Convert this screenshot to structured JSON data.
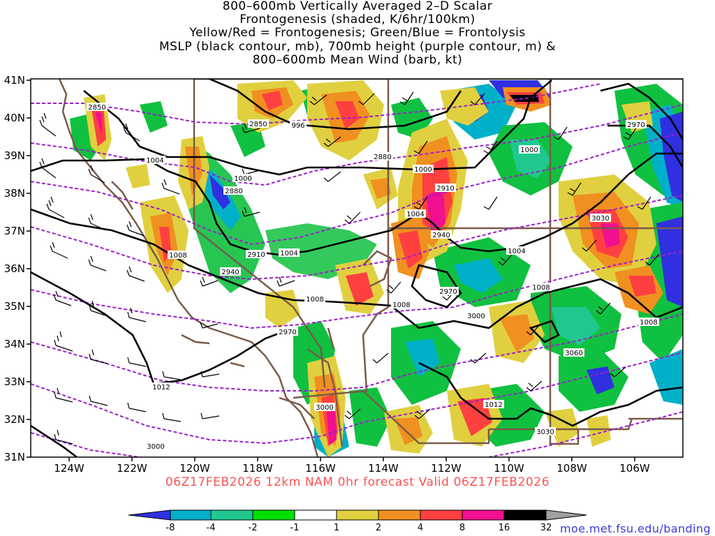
{
  "title": {
    "lines": [
      "800–600mb Vertically Averaged 2–D Scalar",
      "Frontogenesis (shaded, K/6hr/100km)",
      "Yellow/Red = Frontogenesis;  Green/Blue = Frontolysis",
      "MSLP (black contour, mb), 700mb height (purple contour, m) &",
      "800–600mb Mean Wind (barb, kt)"
    ]
  },
  "axes": {
    "lat_labels": [
      "41N",
      "40N",
      "39N",
      "38N",
      "37N",
      "36N",
      "35N",
      "34N",
      "33N",
      "32N",
      "31N"
    ],
    "lon_labels": [
      "124W",
      "122W",
      "120W",
      "118W",
      "116W",
      "114W",
      "112W",
      "110W",
      "108W",
      "106W"
    ]
  },
  "forecast_label": "06Z17FEB2026 12km NAM 0hr forecast Valid 06Z17FEB2026",
  "credit": "moe.met.fsu.edu/banding",
  "colorbar": {
    "labels": [
      "-8",
      "-4",
      "-2",
      "-1",
      "1",
      "2",
      "4",
      "8",
      "16",
      "32"
    ],
    "colors": [
      "#3030e0",
      "#00b0c8",
      "#20c890",
      "#10c040",
      "#00e000",
      "#ffffff",
      "#e0d040",
      "#f09020",
      "#ff4040",
      "#f01090",
      "#000000",
      "#a0a0a0"
    ]
  },
  "contours": {
    "mslp_labels": [
      "996",
      "1000",
      "1000",
      "1000",
      "1004",
      "1004",
      "1004",
      "1004",
      "1008",
      "1008",
      "1008",
      "1008",
      "1008",
      "1012",
      "1012"
    ],
    "height_labels": [
      "2850",
      "2850",
      "2880",
      "2880",
      "2910",
      "2910",
      "2940",
      "2940",
      "2970",
      "2970",
      "2970",
      "3000",
      "3000",
      "3000",
      "3030",
      "3030",
      "3060"
    ]
  },
  "colors": {
    "mslp": "#000000",
    "height": "#9b20c8",
    "state_lines": "#7a5a48",
    "footer": "#ff5050",
    "credit": "#3b3bd8"
  }
}
